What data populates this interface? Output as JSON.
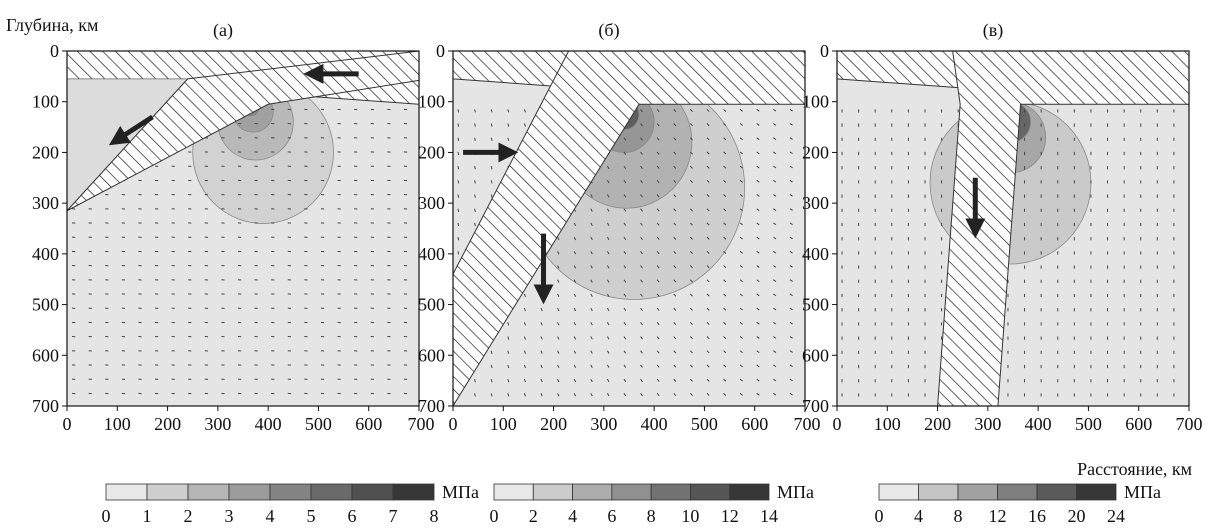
{
  "figure": {
    "ylabel": "Глубина, км",
    "xlabel": "Расстояние, км",
    "unit": "МПа",
    "colors": {
      "background": "#ffffff",
      "field": "#e5e5e5",
      "axis": "#111111",
      "hatch": "#111111"
    }
  },
  "chart_data": [
    {
      "type": "heatmap",
      "panel_label": "(а)",
      "x_ticks": [
        0,
        100,
        200,
        300,
        400,
        500,
        600,
        700
      ],
      "y_ticks": [
        0,
        100,
        200,
        300,
        400,
        500,
        600,
        700
      ],
      "xlim": [
        0,
        700
      ],
      "ylim": [
        700,
        0
      ],
      "slab": [
        [
          240,
          55
        ],
        [
          700,
          0
        ],
        [
          700,
          58
        ],
        [
          400,
          105
        ],
        [
          0,
          315
        ]
      ],
      "crust": [
        [
          0,
          0
        ],
        [
          700,
          0
        ],
        [
          700,
          105
        ],
        [
          0,
          55
        ]
      ],
      "field_top_left": [
        [
          0,
          55
        ],
        [
          240,
          55
        ],
        [
          0,
          315
        ]
      ],
      "contours": [
        {
          "cx": 390,
          "cy": 200,
          "r": 140,
          "level": 1
        },
        {
          "cx": 375,
          "cy": 140,
          "r": 75,
          "level": 2
        },
        {
          "cx": 370,
          "cy": 120,
          "r": 40,
          "level": 3
        },
        {
          "cx": 365,
          "cy": 110,
          "r": 18,
          "level": 4
        }
      ],
      "wedge_contours": [
        {
          "points": [
            [
              0,
              65
            ],
            [
              240,
              58
            ],
            [
              0,
              180
            ]
          ],
          "level": 2
        },
        {
          "points": [
            [
              0,
              75
            ],
            [
              240,
              58
            ],
            [
              0,
              140
            ]
          ],
          "level": 4
        },
        {
          "points": [
            [
              40,
              90
            ],
            [
              240,
              58
            ],
            [
              60,
              120
            ]
          ],
          "level": 6
        }
      ],
      "arrows": [
        {
          "from": [
            580,
            45
          ],
          "to": [
            490,
            45
          ],
          "label": "slab motion"
        },
        {
          "from": [
            170,
            130
          ],
          "to": [
            100,
            175
          ],
          "label": "wedge flow"
        }
      ],
      "colorbar": {
        "ticks": [
          "0",
          "1",
          "2",
          "3",
          "4",
          "5",
          "6",
          "7",
          "8"
        ],
        "min": 0,
        "max": 8
      }
    },
    {
      "type": "heatmap",
      "panel_label": "(б)",
      "x_ticks": [
        0,
        100,
        200,
        300,
        400,
        500,
        600,
        700
      ],
      "y_ticks": [
        0,
        100,
        200,
        300,
        400,
        500,
        600,
        700
      ],
      "xlim": [
        0,
        700
      ],
      "ylim": [
        700,
        0
      ],
      "slab": [
        [
          230,
          0
        ],
        [
          700,
          0
        ],
        [
          700,
          105
        ],
        [
          370,
          105
        ],
        [
          0,
          700
        ],
        [
          0,
          440
        ]
      ],
      "crust": [
        [
          0,
          0
        ],
        [
          700,
          0
        ],
        [
          700,
          105
        ],
        [
          0,
          55
        ]
      ],
      "contours": [
        {
          "cx": 360,
          "cy": 270,
          "r": 220,
          "level": 1
        },
        {
          "cx": 345,
          "cy": 180,
          "r": 130,
          "level": 2
        },
        {
          "cx": 340,
          "cy": 140,
          "r": 60,
          "level": 3
        },
        {
          "cx": 340,
          "cy": 125,
          "r": 30,
          "level": 5
        }
      ],
      "wedge_contours": [
        {
          "points": [
            [
              150,
              200
            ],
            [
              230,
              55
            ],
            [
              175,
              280
            ]
          ],
          "level": 1
        }
      ],
      "arrows": [
        {
          "from": [
            20,
            200
          ],
          "to": [
            110,
            200
          ],
          "label": "inflow"
        },
        {
          "from": [
            180,
            360
          ],
          "to": [
            180,
            480
          ],
          "label": "descent"
        }
      ],
      "colorbar": {
        "ticks": [
          "0",
          "2",
          "4",
          "6",
          "8",
          "10",
          "12",
          "14"
        ],
        "min": 0,
        "max": 14
      }
    },
    {
      "type": "heatmap",
      "panel_label": "(в)",
      "x_ticks": [
        0,
        100,
        200,
        300,
        400,
        500,
        600,
        700
      ],
      "y_ticks": [
        0,
        100,
        200,
        300,
        400,
        500,
        600,
        700
      ],
      "xlim": [
        0,
        700
      ],
      "ylim": [
        700,
        0
      ],
      "slab": [
        [
          230,
          0
        ],
        [
          700,
          0
        ],
        [
          700,
          105
        ],
        [
          365,
          105
        ],
        [
          320,
          700
        ],
        [
          200,
          700
        ],
        [
          245,
          105
        ]
      ],
      "crust": [
        [
          0,
          0
        ],
        [
          700,
          0
        ],
        [
          700,
          105
        ],
        [
          0,
          55
        ]
      ],
      "contours": [
        {
          "cx": 345,
          "cy": 260,
          "r": 160,
          "level": 1
        },
        {
          "cx": 345,
          "cy": 170,
          "r": 70,
          "level": 2
        },
        {
          "cx": 345,
          "cy": 140,
          "r": 40,
          "level": 4
        }
      ],
      "wedge_contours": [],
      "arrows": [
        {
          "from": [
            275,
            250
          ],
          "to": [
            275,
            350
          ],
          "label": "descent"
        }
      ],
      "colorbar": {
        "ticks": [
          "0",
          "4",
          "8",
          "12",
          "16",
          "20",
          "24"
        ],
        "min": 0,
        "max": 24
      }
    }
  ]
}
